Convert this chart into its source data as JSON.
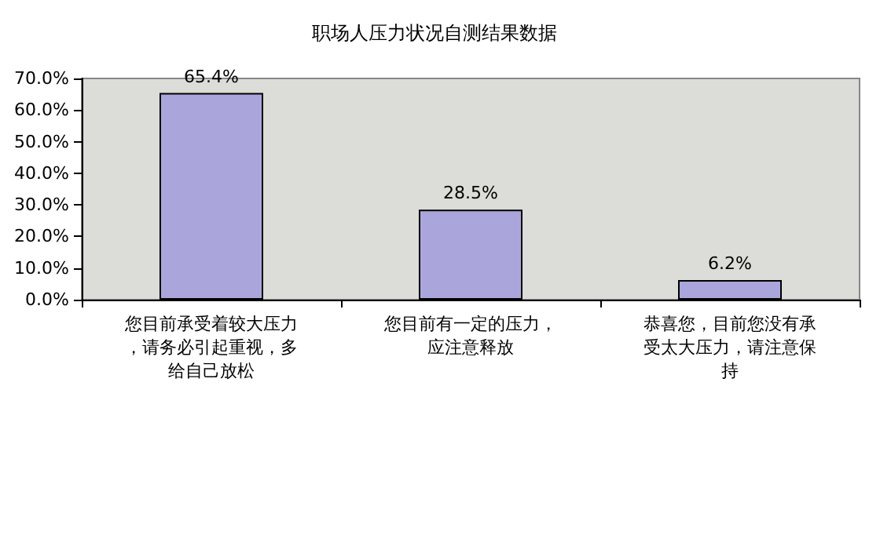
{
  "chart_data": {
    "type": "bar",
    "title": "职场人压力状况自测结果数据",
    "categories": [
      "您目前承受着较大压力，请务必引起重视，多给自己放松",
      "您目前有一定的压力，应注意释放",
      "恭喜您，目前您没有承受太大压力，请注意保持"
    ],
    "values": [
      65.4,
      28.5,
      6.2
    ],
    "value_labels": [
      "65.4%",
      "28.5%",
      "6.2%"
    ],
    "color": "#aaa6dc",
    "ylim": [
      0,
      70
    ],
    "yticks": [
      {
        "value": 0,
        "label": "0.0%"
      },
      {
        "value": 10,
        "label": "10.0%"
      },
      {
        "value": 20,
        "label": "20.0%"
      },
      {
        "value": 30,
        "label": "30.0%"
      },
      {
        "value": 40,
        "label": "40.0%"
      },
      {
        "value": 50,
        "label": "50.0%"
      },
      {
        "value": 60,
        "label": "60.0%"
      },
      {
        "value": 70,
        "label": "70.0%"
      }
    ],
    "grid": false
  }
}
